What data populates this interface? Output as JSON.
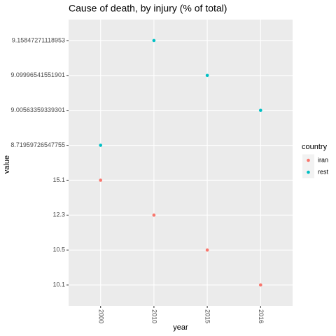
{
  "chart_data": {
    "type": "scatter",
    "title": "Cause of death, by injury (% of total)",
    "x_label": "year",
    "y_label": "value",
    "categories": [
      "2000",
      "2010",
      "2015",
      "2016"
    ],
    "yticks": [
      10.1,
      10.5,
      12.3,
      15.1,
      8.71959726547755,
      9.00563359339301,
      9.09996541551901,
      9.15847271118953
    ],
    "legend_title": "country",
    "legend_position": "right",
    "grid": true,
    "series": [
      {
        "name": "iran",
        "color": "#F8766D",
        "values": [
          15.1,
          12.3,
          10.5,
          10.1
        ]
      },
      {
        "name": "rest",
        "color": "#00BFC4",
        "values": [
          8.71959726547755,
          9.15847271118953,
          9.09996541551901,
          9.00563359339301
        ]
      }
    ]
  }
}
